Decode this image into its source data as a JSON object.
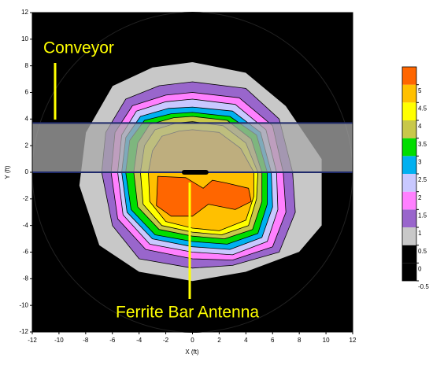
{
  "chart_data": {
    "type": "contour",
    "xlabel": "X (ft)",
    "ylabel": "Y (ft)",
    "xlim": [
      -12,
      12
    ],
    "ylim": [
      -12,
      12
    ],
    "xticks": [
      -12,
      -10,
      -8,
      -6,
      -4,
      -2,
      0,
      2,
      4,
      6,
      8,
      10,
      12
    ],
    "yticks": [
      -12,
      -10,
      -8,
      -6,
      -4,
      -2,
      0,
      2,
      4,
      6,
      8,
      10,
      12
    ],
    "background": "#000000",
    "clim": [
      -0.5,
      5.5
    ],
    "cticks": [
      -0.5,
      0,
      0.5,
      1,
      1.5,
      2,
      2.5,
      3,
      3.5,
      4,
      4.5,
      5
    ],
    "colors": [
      "#000000",
      "#000000",
      "#c8c8c8",
      "#9966cc",
      "#ff80ff",
      "#c8c8ff",
      "#00b0f0",
      "#00dd00",
      "#c8c84a",
      "#ffff00",
      "#ffc000",
      "#ff6600"
    ],
    "contours": [
      {
        "level": 0.5,
        "points": [
          [
            0,
            8.3
          ],
          [
            4,
            7.5
          ],
          [
            7,
            5
          ],
          [
            9.7,
            1
          ],
          [
            9.7,
            -4
          ],
          [
            8,
            -6
          ],
          [
            4,
            -7.5
          ],
          [
            0,
            -8.2
          ],
          [
            -4,
            -7.5
          ],
          [
            -7,
            -5.5
          ],
          [
            -8.5,
            -1
          ],
          [
            -8,
            3
          ],
          [
            -6,
            6.5
          ],
          [
            -3,
            7.9
          ]
        ]
      },
      {
        "level": 1,
        "points": [
          [
            0,
            6.8
          ],
          [
            4,
            6.3
          ],
          [
            6.5,
            4
          ],
          [
            7.5,
            0
          ],
          [
            7.7,
            -3
          ],
          [
            6.5,
            -6
          ],
          [
            3,
            -7
          ],
          [
            0,
            -7.2
          ],
          [
            -4,
            -6.5
          ],
          [
            -6,
            -4
          ],
          [
            -6.8,
            0
          ],
          [
            -6.5,
            3
          ],
          [
            -5,
            5.5
          ],
          [
            -2.5,
            6.5
          ]
        ]
      },
      {
        "level": 1.5,
        "points": [
          [
            0,
            6
          ],
          [
            3.5,
            5.6
          ],
          [
            6,
            3.5
          ],
          [
            6.8,
            0
          ],
          [
            7,
            -3
          ],
          [
            6,
            -5.6
          ],
          [
            3,
            -6.6
          ],
          [
            0,
            -6.5
          ],
          [
            -3.5,
            -5.8
          ],
          [
            -5.6,
            -3.5
          ],
          [
            -6.1,
            0
          ],
          [
            -5.8,
            3
          ],
          [
            -4.5,
            5
          ],
          [
            -2,
            5.8
          ]
        ]
      },
      {
        "level": 2,
        "points": [
          [
            0,
            5.5
          ],
          [
            3.2,
            5.1
          ],
          [
            5.5,
            3.2
          ],
          [
            6.3,
            0
          ],
          [
            6.4,
            -2.8
          ],
          [
            5.6,
            -5.2
          ],
          [
            3,
            -6.2
          ],
          [
            0,
            -6
          ],
          [
            -3.2,
            -5.4
          ],
          [
            -5.2,
            -3.2
          ],
          [
            -5.6,
            0
          ],
          [
            -5.3,
            2.8
          ],
          [
            -4.2,
            4.6
          ],
          [
            -2,
            5.3
          ]
        ]
      },
      {
        "level": 2.5,
        "points": [
          [
            0,
            4.9
          ],
          [
            3,
            4.6
          ],
          [
            5.1,
            3
          ],
          [
            5.9,
            0
          ],
          [
            6,
            -2.6
          ],
          [
            5.2,
            -4.9
          ],
          [
            2.8,
            -5.8
          ],
          [
            0,
            -5.6
          ],
          [
            -3,
            -5
          ],
          [
            -4.9,
            -3
          ],
          [
            -5.3,
            0
          ],
          [
            -5,
            2.6
          ],
          [
            -3.9,
            4.2
          ],
          [
            -1.8,
            4.8
          ]
        ]
      },
      {
        "level": 3,
        "points": [
          [
            0,
            4.5
          ],
          [
            2.8,
            4.2
          ],
          [
            4.8,
            2.8
          ],
          [
            5.6,
            0
          ],
          [
            5.6,
            -2.4
          ],
          [
            4.9,
            -4.6
          ],
          [
            2.6,
            -5.4
          ],
          [
            0,
            -5.2
          ],
          [
            -2.8,
            -4.7
          ],
          [
            -4.6,
            -2.8
          ],
          [
            -5,
            0
          ],
          [
            -4.7,
            2.4
          ],
          [
            -3.6,
            3.9
          ],
          [
            -1.6,
            4.4
          ]
        ]
      },
      {
        "level": 3.5,
        "points": [
          [
            0,
            4.2
          ],
          [
            2.6,
            3.9
          ],
          [
            4.4,
            2.5
          ],
          [
            5.2,
            0
          ],
          [
            5.2,
            -2.2
          ],
          [
            4.5,
            -4.3
          ],
          [
            2.4,
            -5
          ],
          [
            0,
            -4.8
          ],
          [
            -2.5,
            -4.3
          ],
          [
            -4.1,
            -2.6
          ],
          [
            -4.4,
            0
          ],
          [
            -4.1,
            2.2
          ],
          [
            -3.2,
            3.6
          ],
          [
            -1.4,
            4.1
          ]
        ]
      },
      {
        "level": 4,
        "points": [
          [
            0,
            3.8
          ],
          [
            2.3,
            3.5
          ],
          [
            4,
            2.2
          ],
          [
            4.9,
            0
          ],
          [
            4.8,
            -2
          ],
          [
            4.2,
            -4
          ],
          [
            2.2,
            -4.7
          ],
          [
            0,
            -4.5
          ],
          [
            -2.3,
            -4
          ],
          [
            -3.7,
            -2.4
          ],
          [
            -3.9,
            0
          ],
          [
            -3.6,
            2
          ],
          [
            -2.8,
            3.2
          ],
          [
            -1.2,
            3.7
          ]
        ]
      },
      {
        "level": 4.5,
        "points": [
          [
            0,
            3.2
          ],
          [
            2,
            3
          ],
          [
            3.6,
            1.8
          ],
          [
            4.6,
            0
          ],
          [
            4.6,
            -1.8
          ],
          [
            4,
            -3.6
          ],
          [
            2,
            -4.4
          ],
          [
            0,
            -4.2
          ],
          [
            -2,
            -3.7
          ],
          [
            -3.2,
            -2.2
          ],
          [
            -3.3,
            0
          ],
          [
            -3,
            1.6
          ],
          [
            -2.3,
            2.7
          ],
          [
            -1,
            3.1
          ]
        ]
      },
      {
        "level": 5,
        "points": [
          [
            -2.6,
            -0.3
          ],
          [
            -0.5,
            -0.4
          ],
          [
            0.8,
            -1.2
          ],
          [
            1.5,
            -0.6
          ],
          [
            2.5,
            -0.8
          ],
          [
            4.2,
            -1.2
          ],
          [
            4.4,
            -2.2
          ],
          [
            3.2,
            -2.8
          ],
          [
            1.2,
            -2.4
          ],
          [
            0,
            -3.3
          ],
          [
            -1.6,
            -3.3
          ],
          [
            -2.7,
            -2.5
          ]
        ]
      }
    ],
    "conveyor": {
      "label": "Conveyor",
      "y": [
        0,
        3.7
      ]
    },
    "antenna": {
      "label": "Ferrite Bar Antenna",
      "x": [
        -0.8,
        1.2
      ],
      "y": 0
    }
  }
}
